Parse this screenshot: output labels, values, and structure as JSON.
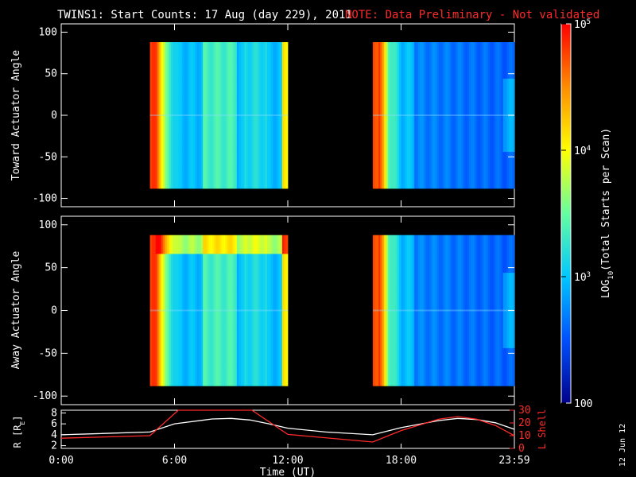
{
  "chart_data": {
    "type": "heatmap",
    "title": "TWINS1: Start Counts: 17 Aug (day 229), 2011",
    "notice": "NOTE: Data Preliminary - Not validated",
    "notice_color": "#ff2a2a",
    "xlabel": "Time (UT)",
    "x_ticks": [
      "0:00",
      "6:00",
      "12:00",
      "18:00",
      "23:59"
    ],
    "x_range_hours": [
      0,
      24
    ],
    "panels": [
      {
        "ylabel": "Toward Actuator Angle",
        "y_ticks": [
          "100",
          "50",
          "0",
          "-50",
          "-100"
        ],
        "ylim": [
          -110,
          110
        ],
        "data_angle_range": [
          -88,
          88
        ],
        "segments": [
          [
            4.7,
            12.0
          ],
          [
            16.5,
            24.0
          ]
        ]
      },
      {
        "ylabel": "Away Actuator Angle",
        "y_ticks": [
          "100",
          "50",
          "0",
          "-50",
          "-100"
        ],
        "ylim": [
          -110,
          110
        ],
        "data_angle_range": [
          -88,
          88
        ],
        "segments": [
          [
            4.7,
            12.0
          ],
          [
            16.5,
            24.0
          ]
        ]
      }
    ],
    "colorbar": {
      "label_prefix": "LOG",
      "label_sub": "10",
      "label_suffix": "(Total Starts per Scan)",
      "tick_labels": [
        {
          "base": "10",
          "exp": "5",
          "log": 5
        },
        {
          "base": "10",
          "exp": "4",
          "log": 4
        },
        {
          "base": "10",
          "exp": "3",
          "log": 3
        },
        {
          "text": "100",
          "log": 2
        }
      ],
      "range_log": [
        2,
        5
      ],
      "colors": [
        "#00008c",
        "#0050ff",
        "#00c8ff",
        "#64ffa0",
        "#ffff00",
        "#ff8c00",
        "#ff0000"
      ]
    },
    "orbit": {
      "left_label": "R [R",
      "left_sub": "E",
      "left_label_end": "]",
      "right_label": "L Shell",
      "right_color": "#ff2a2a",
      "left_ticks": [
        "8",
        "6",
        "4",
        "2"
      ],
      "left_range": [
        1.5,
        8.5
      ],
      "right_ticks": [
        "30",
        "20",
        "10",
        "0"
      ],
      "right_range": [
        0,
        30
      ],
      "r_series": {
        "x": [
          0,
          4.7,
          6,
          8,
          9,
          10,
          11,
          12,
          14,
          16.5,
          18,
          20,
          21,
          22,
          23,
          24
        ],
        "y": [
          4.0,
          4.5,
          6.0,
          6.9,
          7.0,
          6.7,
          6.0,
          5.2,
          4.5,
          4.0,
          5.3,
          6.6,
          7.0,
          6.8,
          6.2,
          5.0
        ]
      },
      "l_series": {
        "x": [
          0,
          4.7,
          6.2,
          10.1,
          12,
          16.5,
          18,
          20,
          21,
          22,
          23,
          24
        ],
        "y": [
          8,
          10,
          30,
          30,
          11,
          5,
          14,
          23,
          25,
          23,
          18,
          10
        ]
      }
    }
  },
  "side_note": "12 Jun 12"
}
